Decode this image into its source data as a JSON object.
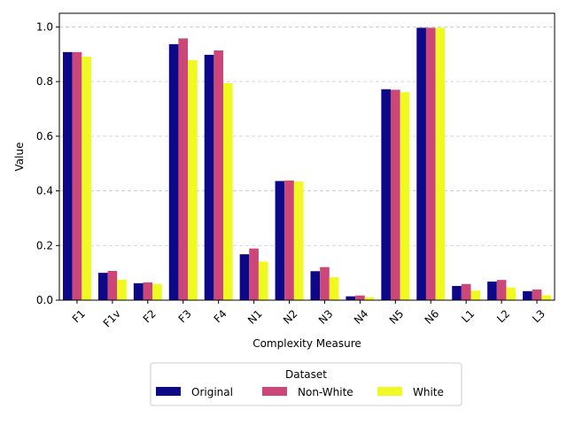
{
  "chart_data": {
    "type": "bar",
    "title": "",
    "xlabel": "Complexity Measure",
    "ylabel": "Value",
    "ylim": [
      0,
      1.05
    ],
    "yticks": [
      "0.0",
      "0.2",
      "0.4",
      "0.6",
      "0.8",
      "1.0"
    ],
    "grid": "y-dashed",
    "categories": [
      "F1",
      "F1v",
      "F2",
      "F3",
      "F4",
      "N1",
      "N2",
      "N3",
      "N4",
      "N5",
      "N6",
      "L1",
      "L2",
      "L3"
    ],
    "series": [
      {
        "name": "Original",
        "color": "#0d0887",
        "values": [
          0.908,
          0.1,
          0.062,
          0.937,
          0.898,
          0.168,
          0.436,
          0.106,
          0.014,
          0.772,
          0.997,
          0.052,
          0.068,
          0.033
        ]
      },
      {
        "name": "Non-White",
        "color": "#cc4778",
        "values": [
          0.908,
          0.107,
          0.065,
          0.958,
          0.914,
          0.189,
          0.438,
          0.121,
          0.017,
          0.77,
          0.997,
          0.059,
          0.074,
          0.039
        ]
      },
      {
        "name": "White",
        "color": "#f0f921",
        "values": [
          0.891,
          0.075,
          0.059,
          0.879,
          0.794,
          0.141,
          0.434,
          0.084,
          0.011,
          0.761,
          0.997,
          0.035,
          0.046,
          0.018
        ]
      }
    ],
    "legend": {
      "title": "Dataset",
      "placement": "bottom-center"
    }
  }
}
